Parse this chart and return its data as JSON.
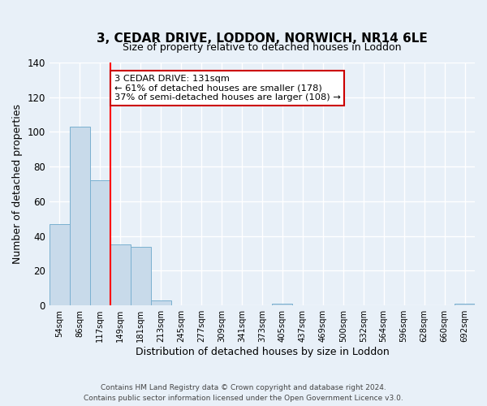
{
  "title": "3, CEDAR DRIVE, LODDON, NORWICH, NR14 6LE",
  "subtitle": "Size of property relative to detached houses in Loddon",
  "xlabel": "Distribution of detached houses by size in Loddon",
  "ylabel": "Number of detached properties",
  "footer_line1": "Contains HM Land Registry data © Crown copyright and database right 2024.",
  "footer_line2": "Contains public sector information licensed under the Open Government Licence v3.0.",
  "bin_labels": [
    "54sqm",
    "86sqm",
    "117sqm",
    "149sqm",
    "181sqm",
    "213sqm",
    "245sqm",
    "277sqm",
    "309sqm",
    "341sqm",
    "373sqm",
    "405sqm",
    "437sqm",
    "469sqm",
    "500sqm",
    "532sqm",
    "564sqm",
    "596sqm",
    "628sqm",
    "660sqm",
    "692sqm"
  ],
  "bar_heights": [
    47,
    103,
    72,
    35,
    34,
    3,
    0,
    0,
    0,
    0,
    0,
    1,
    0,
    0,
    0,
    0,
    0,
    0,
    0,
    0,
    1
  ],
  "bar_color": "#c8daea",
  "bar_edge_color": "#7ab0d0",
  "background_color": "#e8f0f8",
  "grid_color": "#ffffff",
  "red_line_x": 2.5,
  "annotation_text": "3 CEDAR DRIVE: 131sqm\n← 61% of detached houses are smaller (178)\n37% of semi-detached houses are larger (108) →",
  "annotation_box_color": "#ffffff",
  "annotation_box_edge": "#cc0000",
  "ylim": [
    0,
    140
  ],
  "yticks": [
    0,
    20,
    40,
    60,
    80,
    100,
    120,
    140
  ]
}
